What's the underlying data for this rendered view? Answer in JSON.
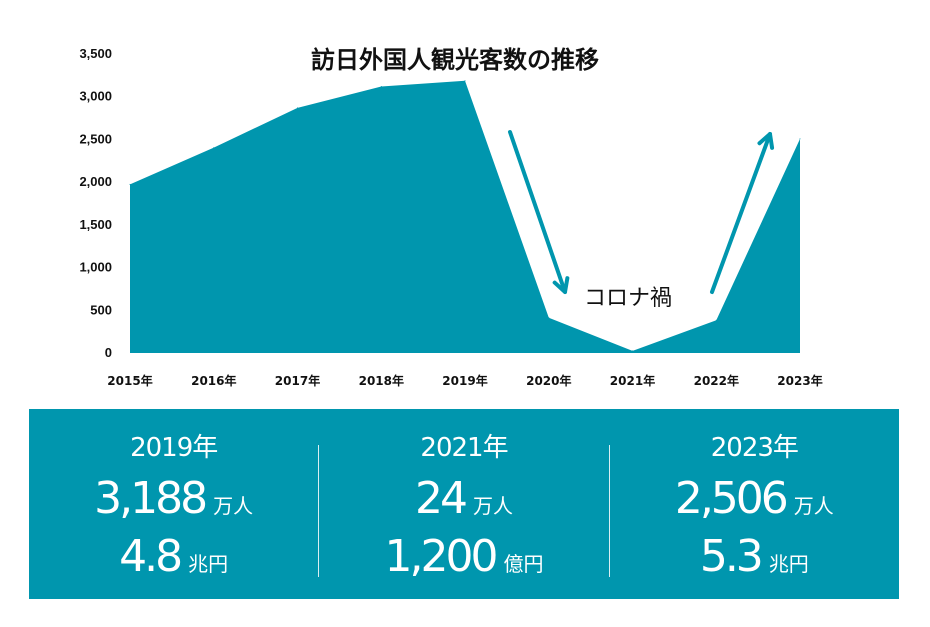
{
  "chart_data": {
    "type": "area",
    "title": "訪日外国人観光客数の推移",
    "categories": [
      "2015年",
      "2016年",
      "2017年",
      "2018年",
      "2019年",
      "2020年",
      "2021年",
      "2022年",
      "2023年"
    ],
    "values": [
      1974,
      2404,
      2869,
      3119,
      3188,
      412,
      24,
      383,
      2506
    ],
    "ylim": [
      0,
      3500
    ],
    "yticks": [
      "0",
      "500",
      "1,000",
      "1,500",
      "2,000",
      "2,500",
      "3,000",
      "3,500"
    ],
    "grid": false,
    "color": "#0096ae",
    "annotation": "コロナ禍"
  },
  "stats": [
    {
      "year": "2019年",
      "visitors": "3,188",
      "visitors_unit": "万人",
      "spending": "4.8",
      "spending_unit": "兆円"
    },
    {
      "year": "2021年",
      "visitors": "24",
      "visitors_unit": "万人",
      "spending": "1,200",
      "spending_unit": "億円"
    },
    {
      "year": "2023年",
      "visitors": "2,506",
      "visitors_unit": "万人",
      "spending": "5.3",
      "spending_unit": "兆円"
    }
  ],
  "colors": {
    "panel": "#0096ae",
    "text_on_panel": "#ffffff"
  }
}
